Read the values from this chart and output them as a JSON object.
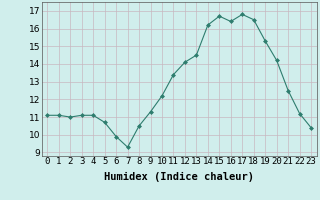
{
  "x": [
    0,
    1,
    2,
    3,
    4,
    5,
    6,
    7,
    8,
    9,
    10,
    11,
    12,
    13,
    14,
    15,
    16,
    17,
    18,
    19,
    20,
    21,
    22,
    23
  ],
  "y": [
    11.1,
    11.1,
    11.0,
    11.1,
    11.1,
    10.7,
    9.9,
    9.3,
    10.5,
    11.3,
    12.2,
    13.4,
    14.1,
    14.5,
    16.2,
    16.7,
    16.4,
    16.8,
    16.5,
    15.3,
    14.2,
    12.5,
    11.2,
    10.4
  ],
  "line_color": "#2e7d6e",
  "marker_color": "#2e7d6e",
  "bg_color": "#d0eeec",
  "grid_color": "#c8b8c0",
  "xlabel": "Humidex (Indice chaleur)",
  "ylim": [
    8.8,
    17.5
  ],
  "xlim": [
    -0.5,
    23.5
  ],
  "yticks": [
    9,
    10,
    11,
    12,
    13,
    14,
    15,
    16,
    17
  ],
  "xtick_labels": [
    "0",
    "1",
    "2",
    "3",
    "4",
    "5",
    "6",
    "7",
    "8",
    "9",
    "10",
    "11",
    "12",
    "13",
    "14",
    "15",
    "16",
    "17",
    "18",
    "19",
    "20",
    "21",
    "22",
    "23"
  ],
  "xlabel_fontsize": 7.5,
  "tick_fontsize": 6.5
}
